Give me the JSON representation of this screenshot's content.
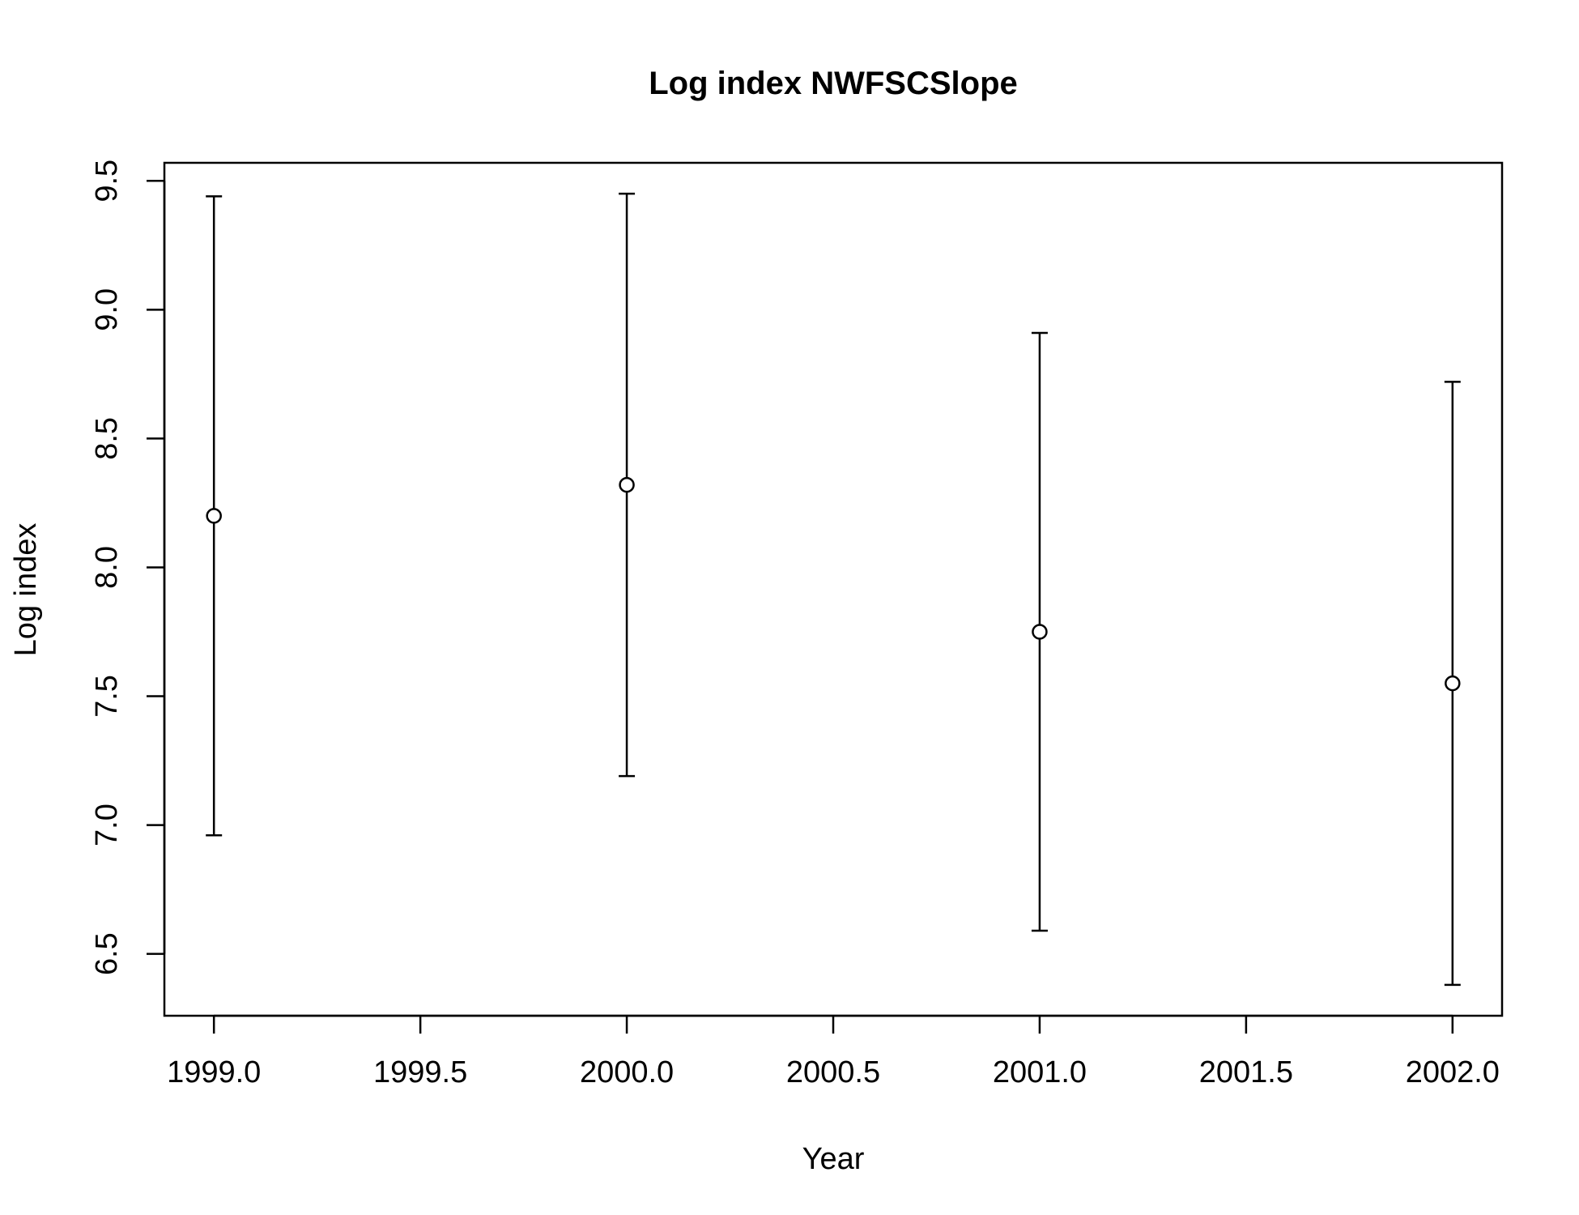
{
  "chart_data": {
    "type": "scatter",
    "title": "Log index NWFSCSlope",
    "xlabel": "Year",
    "ylabel": "Log index",
    "xlim": [
      1998.88,
      2002.12
    ],
    "ylim": [
      6.26,
      9.57
    ],
    "x_ticks": [
      1999.0,
      1999.5,
      2000.0,
      2000.5,
      2001.0,
      2001.5,
      2002.0
    ],
    "x_tick_labels": [
      "1999.0",
      "1999.5",
      "2000.0",
      "2000.5",
      "2001.0",
      "2001.5",
      "2002.0"
    ],
    "y_ticks": [
      6.5,
      7.0,
      7.5,
      8.0,
      8.5,
      9.0,
      9.5
    ],
    "y_tick_labels": [
      "6.5",
      "7.0",
      "7.5",
      "8.0",
      "8.5",
      "9.0",
      "9.5"
    ],
    "grid": false,
    "legend": "none",
    "points": [
      {
        "x": 1999,
        "y": 8.2,
        "lower": 6.96,
        "upper": 9.44
      },
      {
        "x": 2000,
        "y": 8.32,
        "lower": 7.19,
        "upper": 9.45
      },
      {
        "x": 2001,
        "y": 7.75,
        "lower": 6.59,
        "upper": 8.91
      },
      {
        "x": 2002,
        "y": 7.55,
        "lower": 6.38,
        "upper": 8.72
      }
    ],
    "colors": {
      "marks": "#000000",
      "point_fill": "#ffffff"
    }
  }
}
